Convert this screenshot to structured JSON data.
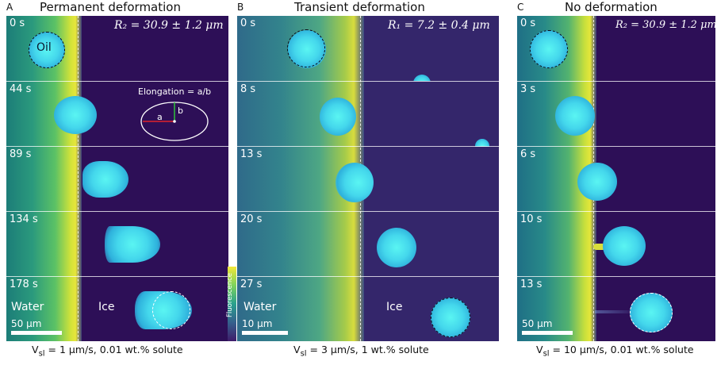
{
  "panels": [
    {
      "letter": "A",
      "title": "Permanent deformation",
      "radius_label": "R₂ = 30.9 ± 1.2 μm",
      "times": [
        "0 s",
        "44 s",
        "89 s",
        "134 s",
        "178 s"
      ],
      "droplet_label": "Oil",
      "water_label": "Water",
      "ice_label": "Ice",
      "scale_bar": "50 μm",
      "caption_prefix": "V",
      "caption_sub": "sl",
      "caption_rest": " = 1 μm/s, 0.01 wt.% solute",
      "inset": {
        "text": "Elongation = a/b",
        "a": "a",
        "b": "b"
      }
    },
    {
      "letter": "B",
      "title": "Transient deformation",
      "radius_label": "R₁ = 7.2 ± 0.4 μm",
      "times": [
        "0 s",
        "8 s",
        "13 s",
        "20 s",
        "27 s"
      ],
      "water_label": "Water",
      "ice_label": "Ice",
      "scale_bar": "10 μm",
      "caption_prefix": "V",
      "caption_sub": "sl",
      "caption_rest": " = 3 μm/s, 1 wt.% solute"
    },
    {
      "letter": "C",
      "title": "No deformation",
      "radius_label": "R₂ = 30.9 ± 1.2 μm",
      "times": [
        "0 s",
        "3 s",
        "6 s",
        "10 s",
        "13 s"
      ],
      "scale_bar": "50 μm",
      "caption_prefix": "V",
      "caption_sub": "sl",
      "caption_rest": " = 10 μm/s, 0.01 wt.% solute"
    }
  ],
  "colorbar_label": "Fluorescence",
  "colors": {
    "ice": "#2d0f57",
    "water_bright": "#e3e33a",
    "droplet": "#4fe6f0"
  }
}
